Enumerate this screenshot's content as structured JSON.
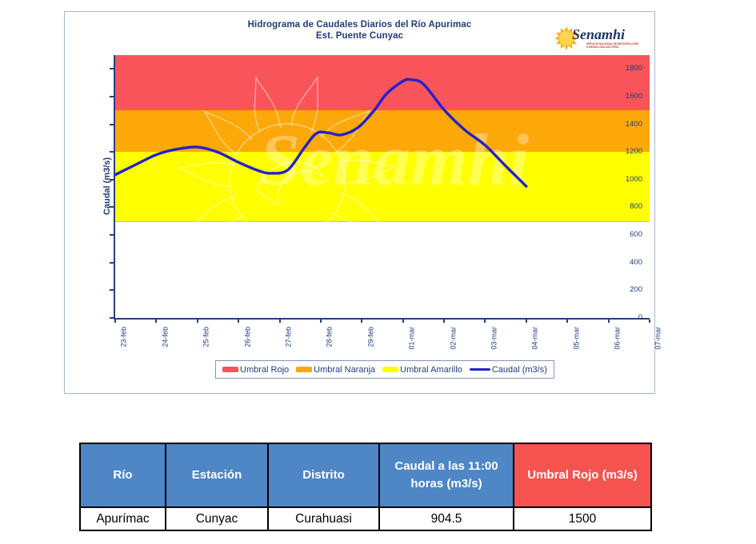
{
  "chart_panel": {
    "title_line1": "Hidrograma de Caudales Diarios del Río Apurimac",
    "title_line2": "Est. Puente Cunyac",
    "watermark_text": "Senamhi",
    "logo": {
      "name": "Senamhi",
      "tagline_line1": "SERVICIO NACIONAL DE METEOROLOGÍA",
      "tagline_line2": "E HIDROLOGÍA DEL PERÚ",
      "sun_color": "#f9a91a",
      "text_color": "#1b3768"
    }
  },
  "chart_data": {
    "type": "line",
    "title": "Hidrograma de Caudales Diarios del Río Apurimac - Est. Puente Cunyac",
    "xlabel": "",
    "ylabel": "Caudal (m3/s)",
    "ylim": [
      0,
      1900
    ],
    "yticks": [
      0,
      200,
      400,
      600,
      800,
      1000,
      1200,
      1400,
      1600,
      1800
    ],
    "grid": false,
    "x_categories": [
      "23-feb",
      "24-feb",
      "25-feb",
      "26-feb",
      "27-feb",
      "28-feb",
      "29-feb",
      "01-mar",
      "02-mar",
      "03-mar",
      "04-mar",
      "05-mar",
      "06-mar",
      "07-mar"
    ],
    "bands": [
      {
        "name": "Umbral Rojo",
        "from": 1500,
        "to": 1900,
        "color": "#f8545a"
      },
      {
        "name": "Umbral Naranja",
        "from": 1200,
        "to": 1500,
        "color": "#fca808"
      },
      {
        "name": "Umbral Amarillo",
        "from": 700,
        "to": 1200,
        "color": "#ffff00"
      }
    ],
    "series": [
      {
        "name": "Caudal (m3/s)",
        "color": "#2222cc",
        "points_day_value": [
          [
            0,
            1035
          ],
          [
            0.5,
            1108
          ],
          [
            1,
            1180
          ],
          [
            1.5,
            1220
          ],
          [
            2,
            1235
          ],
          [
            2.5,
            1198
          ],
          [
            3,
            1125
          ],
          [
            3.5,
            1063
          ],
          [
            3.8,
            1046
          ],
          [
            4.2,
            1070
          ],
          [
            4.6,
            1230
          ],
          [
            4.9,
            1335
          ],
          [
            5.2,
            1338
          ],
          [
            5.5,
            1323
          ],
          [
            5.9,
            1375
          ],
          [
            6.3,
            1500
          ],
          [
            6.6,
            1620
          ],
          [
            7,
            1712
          ],
          [
            7.2,
            1722
          ],
          [
            7.5,
            1690
          ],
          [
            8,
            1505
          ],
          [
            8.5,
            1360
          ],
          [
            9,
            1248
          ],
          [
            9.5,
            1098
          ],
          [
            10,
            952
          ]
        ]
      }
    ],
    "legend": {
      "position": "bottom",
      "items": [
        {
          "label": "Umbral Rojo",
          "color": "#f8545a",
          "type": "box"
        },
        {
          "label": "Umbral Naranja",
          "color": "#fca808",
          "type": "box"
        },
        {
          "label": "Umbral Amarillo",
          "color": "#ffff00",
          "type": "box"
        },
        {
          "label": "Caudal (m3/s)",
          "color": "#2222cc",
          "type": "line"
        }
      ]
    }
  },
  "table": {
    "headers": [
      {
        "label": "Río",
        "bg": "#4e86c6"
      },
      {
        "label": "Estación",
        "bg": "#4e86c6"
      },
      {
        "label": "Distrito",
        "bg": "#4e86c6"
      },
      {
        "label": "Caudal a las 11:00 horas (m3/s)",
        "bg": "#4e86c6"
      },
      {
        "label": "Umbral Rojo (m3/s)",
        "bg": "#f4534f"
      }
    ],
    "row": [
      "Apurímac",
      "Cunyac",
      "Curahuasi",
      "904.5",
      "1500"
    ]
  }
}
